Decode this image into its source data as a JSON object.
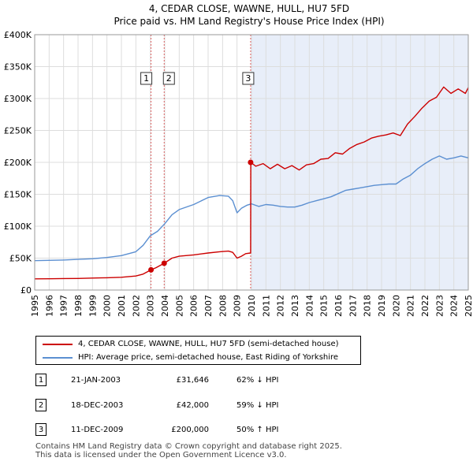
{
  "chart_data": {
    "type": "line",
    "title": "4, CEDAR CLOSE, WAWNE, HULL, HU7 5FD",
    "subtitle": "Price paid vs. HM Land Registry's House Price Index (HPI)",
    "xlabel": "",
    "ylabel": "",
    "xlim": [
      1995,
      2025
    ],
    "ylim": [
      0,
      400000
    ],
    "y_ticks": [
      {
        "value": 0,
        "label": "£0"
      },
      {
        "value": 50000,
        "label": "£50K"
      },
      {
        "value": 100000,
        "label": "£100K"
      },
      {
        "value": 150000,
        "label": "£150K"
      },
      {
        "value": 200000,
        "label": "£200K"
      },
      {
        "value": 250000,
        "label": "£250K"
      },
      {
        "value": 300000,
        "label": "£300K"
      },
      {
        "value": 350000,
        "label": "£350K"
      },
      {
        "value": 400000,
        "label": "£400K"
      }
    ],
    "x_ticks": [
      "1995",
      "1996",
      "1997",
      "1998",
      "1999",
      "2000",
      "2001",
      "2002",
      "2003",
      "2004",
      "2005",
      "2006",
      "2007",
      "2008",
      "2009",
      "2010",
      "2011",
      "2012",
      "2013",
      "2014",
      "2015",
      "2016",
      "2017",
      "2018",
      "2019",
      "2020",
      "2021",
      "2022",
      "2023",
      "2024",
      "2025"
    ],
    "grid": true,
    "shaded_region": {
      "from": 2009.95,
      "to": 2025
    },
    "series": [
      {
        "name": "4, CEDAR CLOSE, WAWNE, HULL, HU7 5FD (semi-detached house)",
        "color": "#cc0000",
        "x": [
          1995,
          1996,
          1997,
          1998,
          1999,
          2000,
          2001,
          2002,
          2002.5,
          2003.05,
          2003.4,
          2003.96,
          2004.5,
          2005,
          2006,
          2007,
          2007.8,
          2008.4,
          2008.7,
          2009,
          2009.3,
          2009.6,
          2009.94,
          2009.95,
          2010.3,
          2010.8,
          2011.3,
          2011.8,
          2012.3,
          2012.8,
          2013.3,
          2013.8,
          2014.3,
          2014.8,
          2015.3,
          2015.8,
          2016.3,
          2016.8,
          2017.3,
          2017.8,
          2018.3,
          2018.8,
          2019.3,
          2019.8,
          2020.3,
          2020.8,
          2021.3,
          2021.8,
          2022.3,
          2022.8,
          2023.3,
          2023.8,
          2024.3,
          2024.8,
          2025
        ],
        "values": [
          17500,
          17600,
          18000,
          18200,
          18800,
          19200,
          20000,
          22000,
          25000,
          31646,
          35000,
          42000,
          50000,
          53000,
          55000,
          58000,
          60000,
          61000,
          59000,
          50000,
          53000,
          57000,
          58000,
          200000,
          194000,
          198000,
          190000,
          197000,
          190000,
          195000,
          188000,
          196000,
          198000,
          205000,
          206000,
          215000,
          213000,
          222000,
          228000,
          232000,
          238000,
          241000,
          243000,
          246000,
          242000,
          260000,
          272000,
          285000,
          296000,
          302000,
          318000,
          308000,
          315000,
          308000,
          317000
        ]
      },
      {
        "name": "HPI: Average price, semi-detached house, East Riding of Yorkshire",
        "color": "#5b8fd1",
        "x": [
          1995,
          1996,
          1997,
          1998,
          1999,
          2000,
          2001,
          2002,
          2002.5,
          2003,
          2003.5,
          2004,
          2004.5,
          2005,
          2006,
          2007,
          2007.8,
          2008.4,
          2008.7,
          2009,
          2009.3,
          2009.7,
          2010,
          2010.5,
          2011,
          2011.5,
          2012,
          2012.5,
          2013,
          2013.5,
          2014,
          2014.5,
          2015,
          2015.5,
          2016,
          2016.5,
          2017,
          2017.5,
          2018,
          2018.5,
          2019,
          2019.5,
          2020,
          2020.5,
          2021,
          2021.5,
          2022,
          2022.5,
          2023,
          2023.5,
          2024,
          2024.5,
          2025
        ],
        "values": [
          46000,
          46500,
          47000,
          48000,
          49000,
          51000,
          54000,
          60000,
          70000,
          85000,
          92000,
          104000,
          118000,
          126000,
          134000,
          145000,
          148000,
          147000,
          140000,
          121000,
          128000,
          133000,
          135000,
          131000,
          134000,
          133000,
          131000,
          130000,
          130000,
          133000,
          137000,
          140000,
          143000,
          146000,
          151000,
          156000,
          158000,
          160000,
          162000,
          164000,
          165000,
          166000,
          166000,
          174000,
          180000,
          190000,
          198000,
          205000,
          210000,
          205000,
          207000,
          210000,
          207000
        ]
      }
    ],
    "sale_markers": [
      {
        "label": "1",
        "x": 2003.05,
        "value": 31646
      },
      {
        "label": "2",
        "x": 2003.96,
        "value": 42000
      },
      {
        "label": "3",
        "x": 2009.94,
        "value": 200000
      }
    ]
  },
  "legend": {
    "property_label": "4, CEDAR CLOSE, WAWNE, HULL, HU7 5FD (semi-detached house)",
    "hpi_label": "HPI: Average price, semi-detached house, East Riding of Yorkshire"
  },
  "sales": [
    {
      "num": "1",
      "date": "21-JAN-2003",
      "price": "£31,646",
      "hpi": "62% ↓ HPI"
    },
    {
      "num": "2",
      "date": "18-DEC-2003",
      "price": "£42,000",
      "hpi": "59% ↓ HPI"
    },
    {
      "num": "3",
      "date": "11-DEC-2009",
      "price": "£200,000",
      "hpi": "50% ↑ HPI"
    }
  ],
  "footer": {
    "line1": "Contains HM Land Registry data © Crown copyright and database right 2025.",
    "line2": "This data is licensed under the Open Government Licence v3.0."
  },
  "colors": {
    "property": "#cc0000",
    "hpi": "#5b8fd1",
    "vline": "#cc0000",
    "shade": "#e8eef9"
  }
}
